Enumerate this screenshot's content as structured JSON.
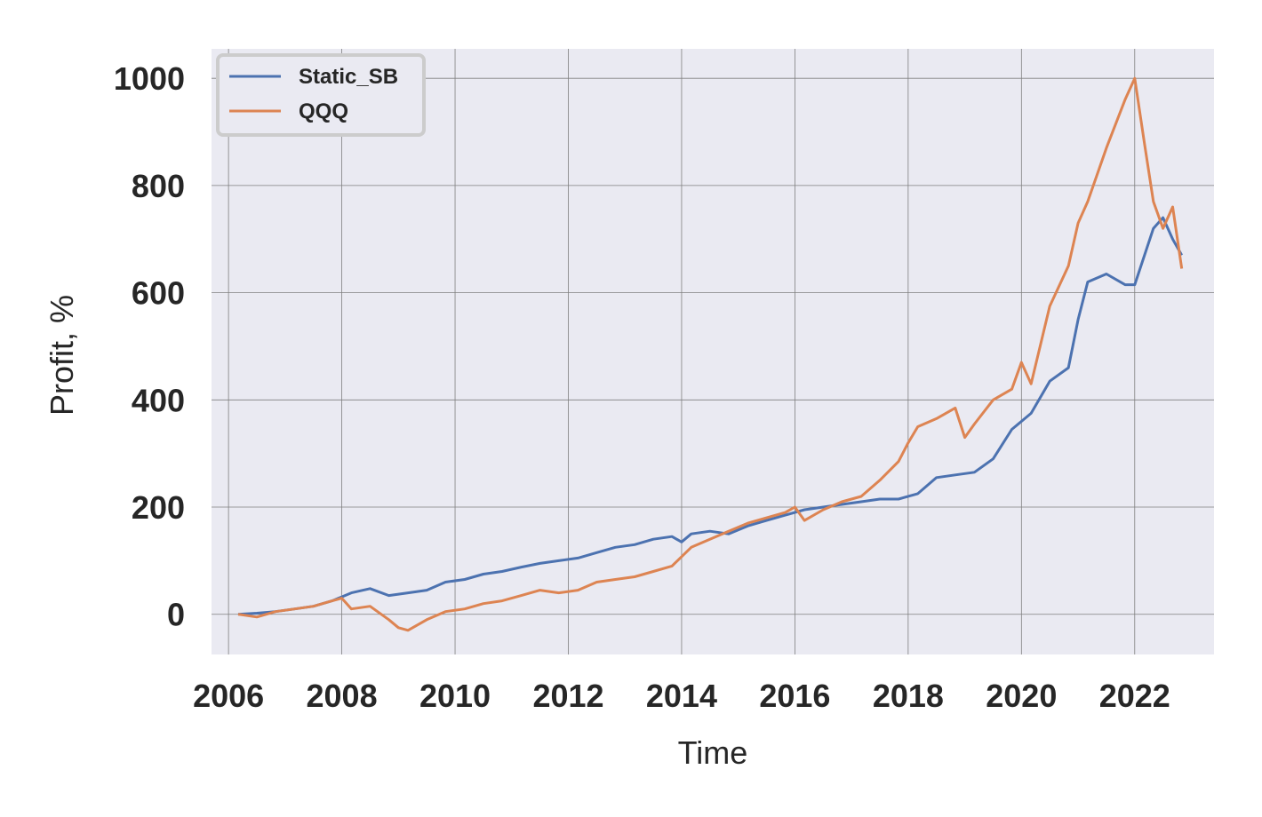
{
  "chart_data": {
    "type": "line",
    "title": "",
    "xlabel": "Time",
    "ylabel": "Profit, %",
    "xlim": [
      2005.7,
      2023.4
    ],
    "ylim": [
      -75,
      1055
    ],
    "x_ticks": [
      2006,
      2008,
      2010,
      2012,
      2014,
      2016,
      2018,
      2020,
      2022
    ],
    "y_ticks": [
      0,
      200,
      400,
      600,
      800,
      1000
    ],
    "grid": true,
    "legend_position": "upper left",
    "colors": {
      "background": "#EAEAF2",
      "grid": "#7F7F7F",
      "text": "#262626"
    },
    "series": [
      {
        "name": "Static_SB",
        "color": "#4C72B0",
        "x": [
          2006.17,
          2006.5,
          2006.83,
          2007.17,
          2007.5,
          2007.83,
          2008.17,
          2008.5,
          2008.83,
          2009.17,
          2009.5,
          2009.83,
          2010.17,
          2010.5,
          2010.83,
          2011.17,
          2011.5,
          2011.83,
          2012.17,
          2012.5,
          2012.83,
          2013.17,
          2013.5,
          2013.83,
          2014.0,
          2014.17,
          2014.5,
          2014.83,
          2015.17,
          2015.5,
          2015.83,
          2016.17,
          2016.5,
          2016.83,
          2017.17,
          2017.5,
          2017.83,
          2018.17,
          2018.5,
          2018.83,
          2019.17,
          2019.5,
          2019.83,
          2020.0,
          2020.17,
          2020.5,
          2020.83,
          2021.0,
          2021.17,
          2021.5,
          2021.83,
          2022.0,
          2022.33,
          2022.5,
          2022.67,
          2022.83
        ],
        "values": [
          0,
          2,
          5,
          10,
          15,
          25,
          40,
          48,
          35,
          40,
          45,
          60,
          65,
          75,
          80,
          88,
          95,
          100,
          105,
          115,
          125,
          130,
          140,
          145,
          135,
          150,
          155,
          150,
          165,
          175,
          185,
          195,
          200,
          205,
          210,
          215,
          215,
          225,
          255,
          260,
          265,
          290,
          345,
          360,
          375,
          435,
          460,
          550,
          620,
          635,
          615,
          615,
          720,
          740,
          700,
          670
        ]
      },
      {
        "name": "QQQ",
        "color": "#DD8452",
        "x": [
          2006.17,
          2006.5,
          2006.83,
          2007.17,
          2007.5,
          2007.83,
          2008.0,
          2008.17,
          2008.5,
          2008.83,
          2009.0,
          2009.17,
          2009.5,
          2009.83,
          2010.17,
          2010.5,
          2010.83,
          2011.17,
          2011.5,
          2011.83,
          2012.17,
          2012.5,
          2012.83,
          2013.17,
          2013.5,
          2013.83,
          2014.17,
          2014.5,
          2014.83,
          2015.17,
          2015.5,
          2015.83,
          2016.0,
          2016.17,
          2016.5,
          2016.83,
          2017.17,
          2017.5,
          2017.83,
          2018.0,
          2018.17,
          2018.5,
          2018.83,
          2019.0,
          2019.17,
          2019.5,
          2019.83,
          2020.0,
          2020.17,
          2020.5,
          2020.83,
          2021.0,
          2021.17,
          2021.5,
          2021.83,
          2022.0,
          2022.17,
          2022.33,
          2022.5,
          2022.67,
          2022.83
        ],
        "values": [
          0,
          -5,
          5,
          10,
          15,
          25,
          30,
          10,
          15,
          -10,
          -25,
          -30,
          -10,
          5,
          10,
          20,
          25,
          35,
          45,
          40,
          45,
          60,
          65,
          70,
          80,
          90,
          125,
          140,
          155,
          170,
          180,
          190,
          200,
          175,
          195,
          210,
          220,
          250,
          285,
          320,
          350,
          365,
          385,
          330,
          355,
          400,
          420,
          470,
          430,
          575,
          650,
          730,
          770,
          870,
          960,
          1000,
          880,
          770,
          720,
          760,
          645
        ]
      }
    ]
  }
}
